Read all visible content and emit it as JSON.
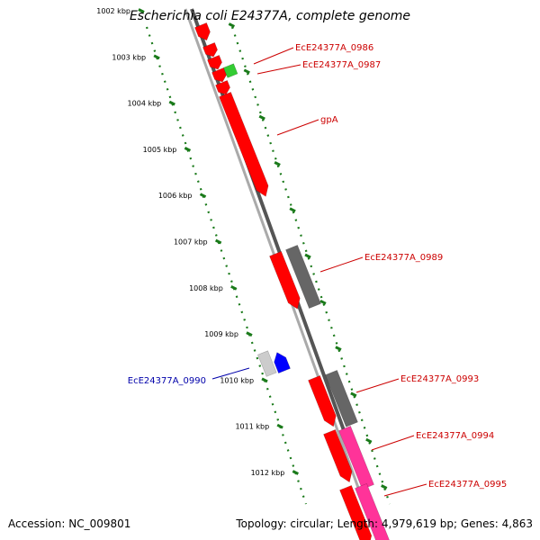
{
  "title": "Escherichia coli E24377A, complete genome",
  "footer": {
    "accession": "Accession: NC_009801",
    "summary": "Topology: circular; Length: 4,979,619 bp; Genes: 4,863"
  },
  "colors": {
    "forward_gene": "#ff0000",
    "reverse_gene": "#ff0000",
    "hypothetical": "#666666",
    "rna": "#33cc33",
    "blue_gene": "#0000ff",
    "pink_gene": "#ff3399",
    "light_gray": "#cccccc",
    "tick_green": "#1a7a1a",
    "label_red": "#cc0000",
    "label_blue": "#0000aa"
  },
  "ticks": [
    "1002 kbp",
    "1003 kbp",
    "1004 kbp",
    "1005 kbp",
    "1006 kbp",
    "1007 kbp",
    "1008 kbp",
    "1009 kbp",
    "1010 kbp",
    "1011 kbp",
    "1012 kbp"
  ],
  "gene_labels": [
    {
      "id": "EcE24377A_0986",
      "text": "EcE24377A_0986",
      "color": "red"
    },
    {
      "id": "EcE24377A_0987",
      "text": "EcE24377A_0987",
      "color": "red"
    },
    {
      "id": "gpA",
      "text": "gpA",
      "color": "red"
    },
    {
      "id": "EcE24377A_0989",
      "text": "EcE24377A_0989",
      "color": "red"
    },
    {
      "id": "EcE24377A_0990",
      "text": "EcE24377A_0990",
      "color": "blue"
    },
    {
      "id": "EcE24377A_0993",
      "text": "EcE24377A_0993",
      "color": "red"
    },
    {
      "id": "EcE24377A_0994",
      "text": "EcE24377A_0994",
      "color": "red"
    },
    {
      "id": "EcE24377A_0995",
      "text": "EcE24377A_0995",
      "color": "red"
    }
  ]
}
